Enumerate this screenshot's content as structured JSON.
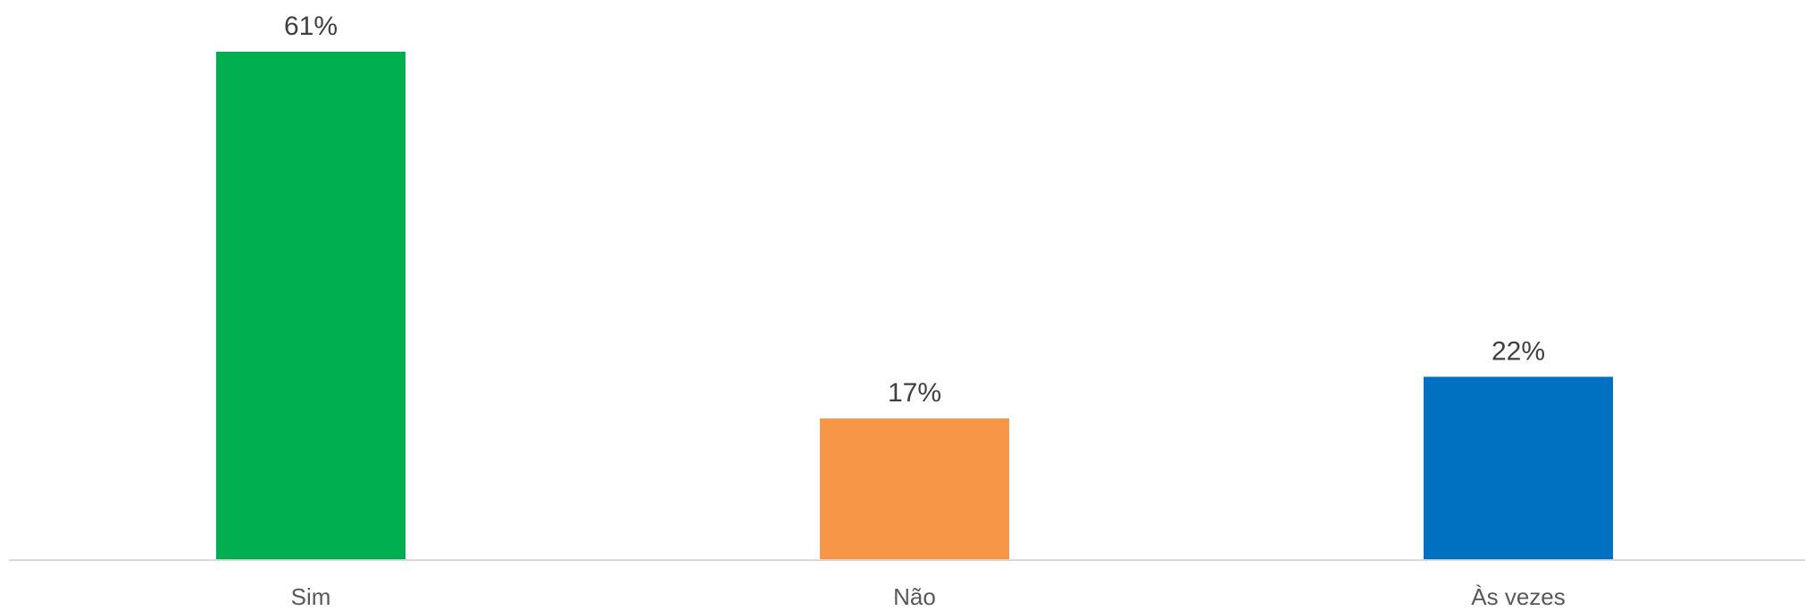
{
  "chart_data": {
    "type": "bar",
    "categories": [
      "Sim",
      "Não",
      "Às vezes"
    ],
    "values": [
      61,
      17,
      22
    ],
    "data_labels": [
      "61%",
      "17%",
      "22%"
    ],
    "colors": [
      "#00b050",
      "#f79646",
      "#0070c0"
    ],
    "ylim": [
      0,
      61
    ],
    "title": "",
    "xlabel": "",
    "ylabel": "",
    "grid": false,
    "legend": "none"
  }
}
